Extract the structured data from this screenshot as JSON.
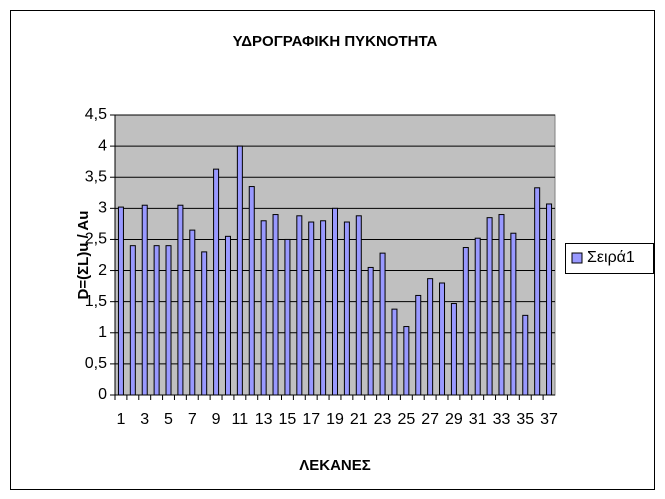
{
  "chart_data": {
    "type": "bar",
    "title": "ΥΔΡΟΓΡΑΦΙΚΗ ΠΥΚΝΟΤΗΤΑ",
    "x_label": "ΛΕΚΑΝΕΣ",
    "y_label": "D=(ΣL)u / Au",
    "categories": [
      1,
      null,
      3,
      null,
      5,
      null,
      7,
      null,
      9,
      null,
      11,
      null,
      13,
      null,
      15,
      null,
      17,
      null,
      19,
      null,
      21,
      null,
      23,
      null,
      25,
      null,
      27,
      null,
      29,
      null,
      31,
      null,
      33,
      null,
      35,
      null,
      37
    ],
    "series": [
      {
        "name": "Σειρά1",
        "color": "#9999ff",
        "values": [
          3.02,
          2.4,
          3.05,
          2.4,
          2.4,
          3.05,
          2.65,
          2.3,
          3.63,
          2.55,
          4.0,
          3.35,
          2.8,
          2.9,
          2.5,
          2.88,
          2.78,
          2.8,
          3.0,
          2.78,
          2.88,
          2.05,
          2.28,
          1.38,
          1.1,
          1.6,
          1.87,
          1.8,
          1.47,
          2.37,
          2.52,
          2.85,
          2.9,
          2.6,
          1.28,
          3.33,
          3.07
        ]
      }
    ],
    "ylim": [
      0,
      4.5
    ],
    "yticks": [
      0,
      {
        "value": 0.5,
        "label": "0,5"
      },
      1,
      {
        "value": 1.5,
        "label": "1,5"
      },
      2,
      {
        "value": 2.5,
        "label": "2,5"
      },
      3,
      {
        "value": 3.5,
        "label": "3,5"
      },
      4,
      {
        "value": 4.5,
        "label": "4,5"
      }
    ],
    "grid": true,
    "plot_background": "#c0c0c0",
    "legend": "right"
  }
}
